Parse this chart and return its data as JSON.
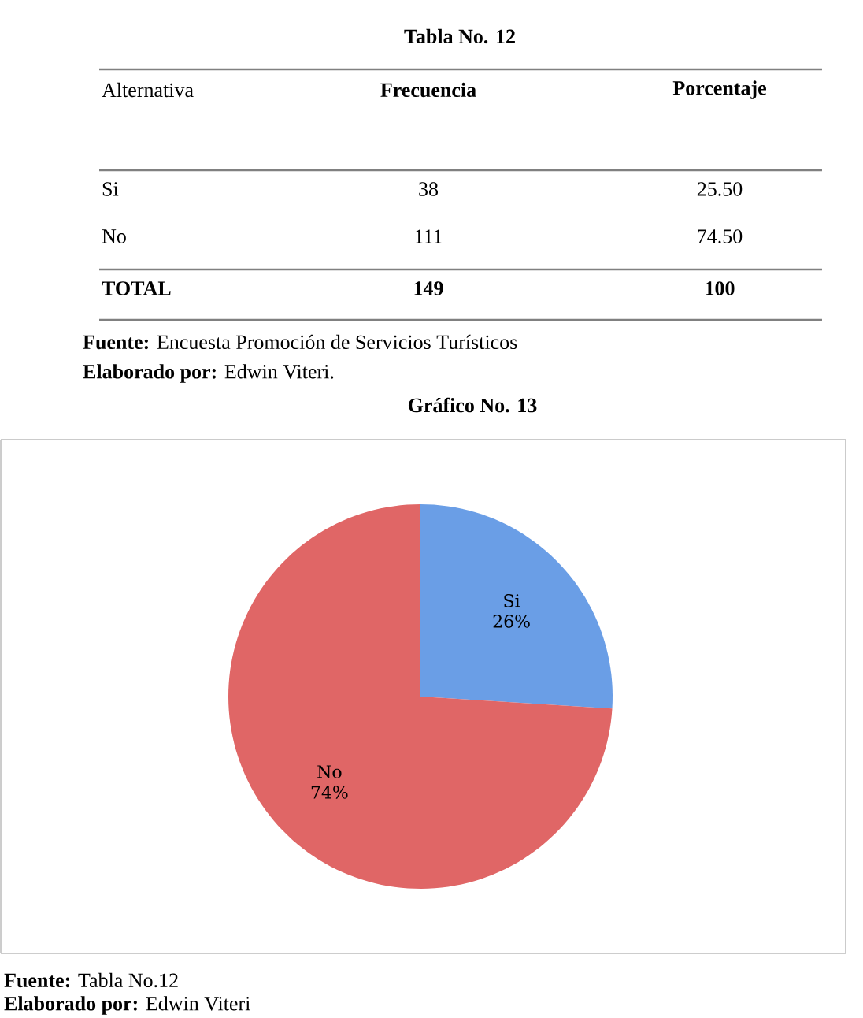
{
  "chart_data": [
    {
      "type": "other",
      "title": "Tabla No. 12",
      "xlabel": "Alternativa",
      "categories": [
        "Si",
        "No",
        "TOTAL"
      ],
      "series": [
        {
          "name": "Frecuencia",
          "values": [
            38,
            111,
            149
          ]
        },
        {
          "name": "Porcentaje",
          "values": [
            25.5,
            74.5,
            100
          ],
          "value_labels": [
            "25.50",
            "74.50",
            "100"
          ]
        }
      ],
      "data_labels": true,
      "annotations": [
        "**Fuente:** Encuesta Promoción de Servicios Turísticos",
        "**Elaborado por:** Edwin Viteri."
      ]
    },
    {
      "type": "pie",
      "title": "Gráfico No. 13",
      "categories": [
        "Si",
        "No"
      ],
      "values": [
        26,
        74
      ],
      "value_labels": [
        "26%",
        "74%"
      ],
      "colors": [
        "#6a9ee6",
        "#e06666"
      ],
      "annotations": [
        "**Fuente:** Tabla No.12",
        "**Elaborado por:** Edwin Viteri"
      ]
    }
  ]
}
